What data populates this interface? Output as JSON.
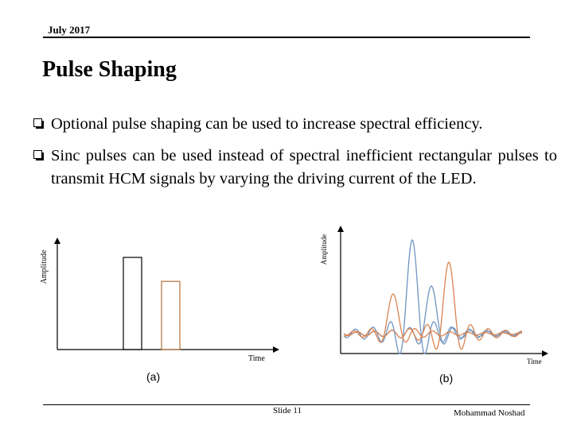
{
  "header": {
    "date": "July 2017"
  },
  "title": "Pulse Shaping",
  "bullets": [
    {
      "icon": "checkbox-bullet-icon",
      "text": "Optional pulse shaping can be used to increase spectral efficiency."
    },
    {
      "icon": "checkbox-bullet-icon",
      "text": "Sinc pulses can be used instead of spectral inefficient rectangular pulses to transmit HCM signals by varying the driving current of the LED."
    }
  ],
  "figure_a": {
    "caption": "(a)",
    "ylabel": "Amplitude",
    "xlabel": "Time",
    "pulse_colors": [
      "#000000",
      "#b5733a"
    ],
    "pulse_heights": [
      1.0,
      0.74
    ]
  },
  "figure_b": {
    "caption": "(b)",
    "ylabel": "Amplitude",
    "xlabel": "Time",
    "series_colors": [
      "#6f95c2",
      "#db8552"
    ]
  },
  "footer": {
    "slide": "Slide 11",
    "author": "Mohammad Noshad"
  }
}
